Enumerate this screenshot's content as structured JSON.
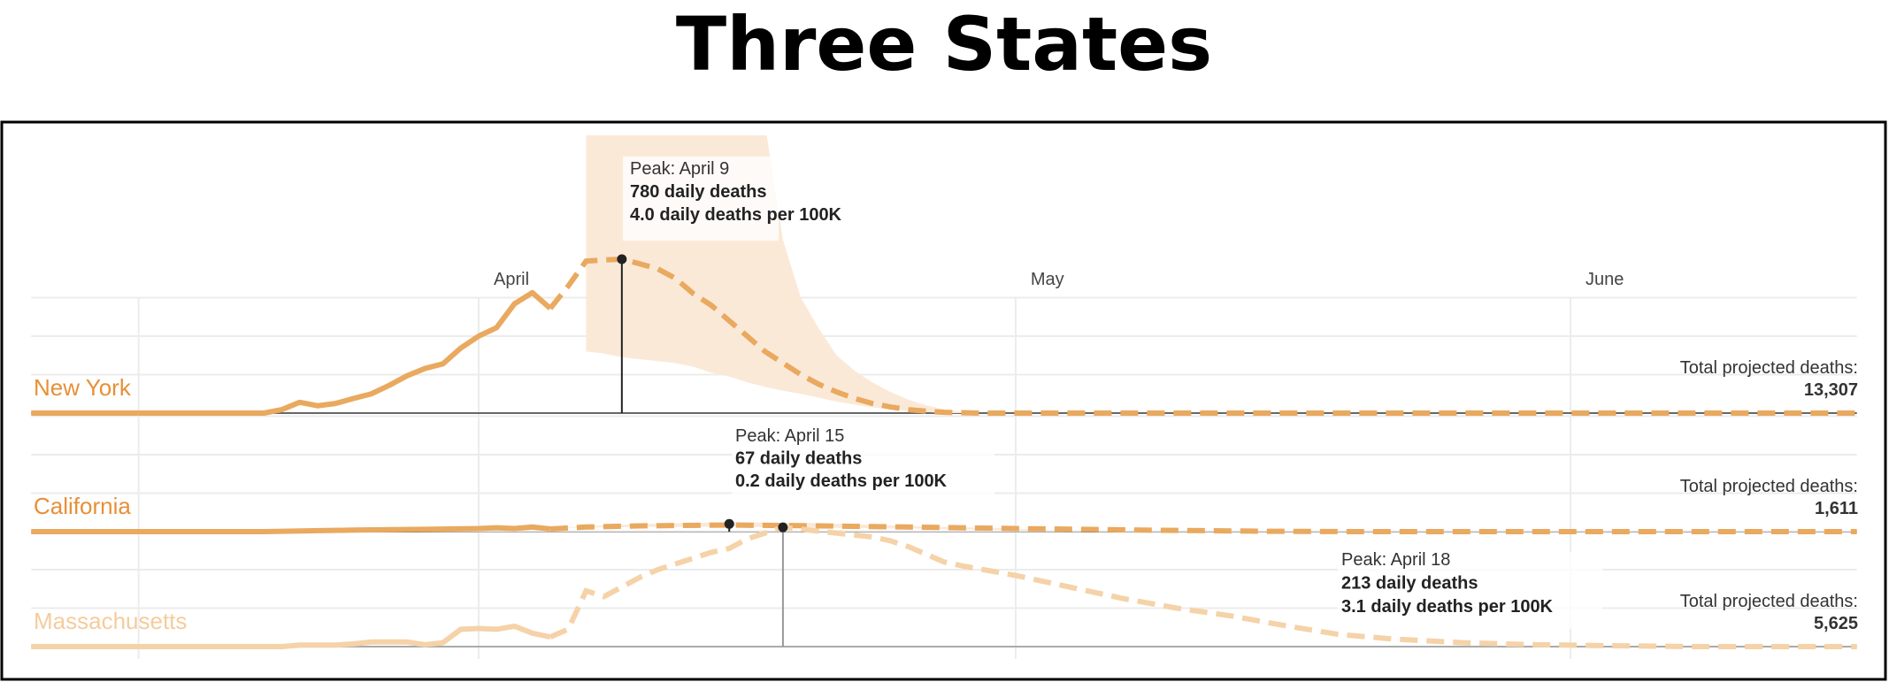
{
  "chart_data": {
    "type": "line",
    "title": "Three States",
    "x_axis": {
      "type": "date",
      "range": [
        "03-07",
        "06-17"
      ],
      "tick_labels": [
        {
          "date": "04-01",
          "label": "April"
        },
        {
          "date": "05-01",
          "label": "May"
        },
        {
          "date": "06-01",
          "label": "June"
        }
      ],
      "extra_gridlines": [
        "03-13"
      ]
    },
    "y_unit": "daily deaths per 100K",
    "y_gridlines": [
      1,
      2,
      3
    ],
    "grid": true,
    "colors": {
      "line": "#e9a95f",
      "line_faded": "#f5d2a8",
      "band": "#fbe9d8",
      "band_faded": "#fdf3e8",
      "label": "#e88f36",
      "label_faded": "#f5cc9c",
      "baseline": "#666666",
      "grid": "#ececec"
    },
    "panels": [
      {
        "name": "New York",
        "faded": false,
        "total_label": "Total projected deaths:",
        "total_value": "13,307",
        "peak": {
          "date": "04-09",
          "value": 4.0,
          "line1": "Peak: April 9",
          "line2": "780 daily deaths",
          "line3": "4.0 daily deaths per 100K"
        },
        "actual": [
          [
            "03-07",
            0
          ],
          [
            "03-20",
            0
          ],
          [
            "03-21",
            0.09
          ],
          [
            "03-22",
            0.28
          ],
          [
            "03-23",
            0.19
          ],
          [
            "03-24",
            0.25
          ],
          [
            "03-25",
            0.38
          ],
          [
            "03-26",
            0.5
          ],
          [
            "03-27",
            0.72
          ],
          [
            "03-28",
            0.97
          ],
          [
            "03-29",
            1.16
          ],
          [
            "03-30",
            1.28
          ],
          [
            "03-31",
            1.69
          ],
          [
            "04-01",
            2.0
          ],
          [
            "04-02",
            2.22
          ],
          [
            "04-03",
            2.84
          ],
          [
            "04-04",
            3.13
          ],
          [
            "04-05",
            2.72
          ]
        ],
        "projected": [
          [
            "04-05",
            2.72
          ],
          [
            "04-06",
            3.3
          ],
          [
            "04-07",
            3.95
          ],
          [
            "04-08",
            3.98
          ],
          [
            "04-09",
            4.0
          ],
          [
            "04-10",
            3.88
          ],
          [
            "04-11",
            3.75
          ],
          [
            "04-12",
            3.5
          ],
          [
            "04-13",
            3.1
          ],
          [
            "04-14",
            2.8
          ],
          [
            "04-15",
            2.4
          ],
          [
            "04-16",
            2.0
          ],
          [
            "04-17",
            1.6
          ],
          [
            "04-18",
            1.3
          ],
          [
            "04-19",
            1.0
          ],
          [
            "04-20",
            0.75
          ],
          [
            "04-21",
            0.55
          ],
          [
            "04-22",
            0.38
          ],
          [
            "04-23",
            0.25
          ],
          [
            "04-24",
            0.16
          ],
          [
            "04-25",
            0.09
          ],
          [
            "04-26",
            0.05
          ],
          [
            "04-27",
            0.02
          ],
          [
            "04-29",
            0
          ],
          [
            "06-17",
            0
          ]
        ],
        "band_upper": [
          [
            "04-07",
            7.5
          ],
          [
            "04-17",
            7.5
          ],
          [
            "04-18",
            4.5
          ],
          [
            "04-19",
            3.0
          ],
          [
            "04-20",
            2.2
          ],
          [
            "04-21",
            1.5
          ],
          [
            "04-22",
            1.1
          ],
          [
            "04-23",
            0.8
          ],
          [
            "04-24",
            0.55
          ],
          [
            "04-25",
            0.35
          ],
          [
            "04-26",
            0.2
          ],
          [
            "04-27",
            0.1
          ],
          [
            "04-28",
            0.03
          ],
          [
            "04-29",
            0
          ]
        ],
        "band_lower": [
          [
            "04-07",
            1.6
          ],
          [
            "04-08",
            1.55
          ],
          [
            "04-09",
            1.45
          ],
          [
            "04-10",
            1.4
          ],
          [
            "04-11",
            1.35
          ],
          [
            "04-12",
            1.3
          ],
          [
            "04-13",
            1.2
          ],
          [
            "04-14",
            1.05
          ],
          [
            "04-15",
            0.95
          ],
          [
            "04-16",
            0.8
          ],
          [
            "04-17",
            0.68
          ],
          [
            "04-18",
            0.58
          ],
          [
            "04-19",
            0.5
          ],
          [
            "04-20",
            0.4
          ],
          [
            "04-21",
            0.3
          ],
          [
            "04-22",
            0.22
          ],
          [
            "04-23",
            0.15
          ],
          [
            "04-24",
            0.1
          ],
          [
            "04-25",
            0.06
          ],
          [
            "04-26",
            0.03
          ],
          [
            "04-27",
            0
          ],
          [
            "04-29",
            0
          ]
        ]
      },
      {
        "name": "California",
        "faded": false,
        "total_label": "Total projected deaths:",
        "total_value": "1,611",
        "peak": {
          "date": "04-15",
          "value": 0.2,
          "line1": "Peak: April 15",
          "line2": "67 daily deaths",
          "line3": "0.2 daily deaths per 100K"
        },
        "actual": [
          [
            "03-07",
            0
          ],
          [
            "03-20",
            0
          ],
          [
            "03-25",
            0.04
          ],
          [
            "03-29",
            0.06
          ],
          [
            "04-01",
            0.08
          ],
          [
            "04-02",
            0.1
          ],
          [
            "04-03",
            0.08
          ],
          [
            "04-04",
            0.12
          ],
          [
            "04-05",
            0.07
          ]
        ],
        "projected": [
          [
            "04-05",
            0.07
          ],
          [
            "04-07",
            0.12
          ],
          [
            "04-10",
            0.15
          ],
          [
            "04-15",
            0.17
          ],
          [
            "04-20",
            0.15
          ],
          [
            "04-25",
            0.12
          ],
          [
            "05-01",
            0.08
          ],
          [
            "05-08",
            0.04
          ],
          [
            "05-15",
            0.01
          ],
          [
            "05-20",
            0
          ],
          [
            "06-17",
            0
          ]
        ],
        "band_upper": [
          [
            "04-06",
            0.12
          ],
          [
            "04-10",
            0.2
          ],
          [
            "04-15",
            0.25
          ],
          [
            "04-20",
            0.22
          ],
          [
            "04-25",
            0.15
          ],
          [
            "05-01",
            0.08
          ],
          [
            "05-05",
            0
          ]
        ],
        "band_lower": [
          [
            "04-06",
            0.1
          ],
          [
            "04-10",
            0.12
          ],
          [
            "04-15",
            0.13
          ],
          [
            "04-20",
            0.1
          ],
          [
            "04-25",
            0.08
          ],
          [
            "05-01",
            0.04
          ],
          [
            "05-05",
            0
          ]
        ]
      },
      {
        "name": "Massachusetts",
        "faded": true,
        "total_label": "Total projected deaths:",
        "total_value": "5,625",
        "peak": {
          "date": "04-18",
          "value": 3.1,
          "line1": "Peak: April 18",
          "line2": "213 daily deaths",
          "line3": "3.1 daily deaths per 100K"
        },
        "actual": [
          [
            "03-07",
            0
          ],
          [
            "03-21",
            0
          ],
          [
            "03-22",
            0.04
          ],
          [
            "03-24",
            0.04
          ],
          [
            "03-25",
            0.07
          ],
          [
            "03-26",
            0.12
          ],
          [
            "03-28",
            0.12
          ],
          [
            "03-29",
            0.05
          ],
          [
            "03-30",
            0.1
          ],
          [
            "03-31",
            0.45
          ],
          [
            "04-01",
            0.47
          ],
          [
            "04-02",
            0.45
          ],
          [
            "04-03",
            0.53
          ],
          [
            "04-04",
            0.35
          ],
          [
            "04-05",
            0.25
          ]
        ],
        "projected": [
          [
            "04-05",
            0.25
          ],
          [
            "04-06",
            0.45
          ],
          [
            "04-07",
            1.45
          ],
          [
            "04-08",
            1.3
          ],
          [
            "04-09",
            1.55
          ],
          [
            "04-10",
            1.8
          ],
          [
            "04-11",
            2.0
          ],
          [
            "04-12",
            2.15
          ],
          [
            "04-13",
            2.3
          ],
          [
            "04-14",
            2.45
          ],
          [
            "04-15",
            2.55
          ],
          [
            "04-16",
            2.8
          ],
          [
            "04-17",
            2.95
          ],
          [
            "04-18",
            3.1
          ],
          [
            "04-19",
            3.05
          ],
          [
            "04-20",
            3.0
          ],
          [
            "04-21",
            2.95
          ],
          [
            "04-22",
            2.9
          ],
          [
            "04-23",
            2.85
          ],
          [
            "04-24",
            2.75
          ],
          [
            "04-25",
            2.6
          ],
          [
            "04-26",
            2.4
          ],
          [
            "04-27",
            2.2
          ],
          [
            "04-28",
            2.1
          ],
          [
            "05-01",
            1.85
          ],
          [
            "05-04",
            1.55
          ],
          [
            "05-07",
            1.25
          ],
          [
            "05-10",
            1.0
          ],
          [
            "05-13",
            0.8
          ],
          [
            "05-16",
            0.55
          ],
          [
            "05-19",
            0.32
          ],
          [
            "05-22",
            0.2
          ],
          [
            "05-26",
            0.1
          ],
          [
            "05-30",
            0.05
          ],
          [
            "06-04",
            0.02
          ],
          [
            "06-08",
            0
          ],
          [
            "06-17",
            0
          ]
        ]
      }
    ]
  }
}
